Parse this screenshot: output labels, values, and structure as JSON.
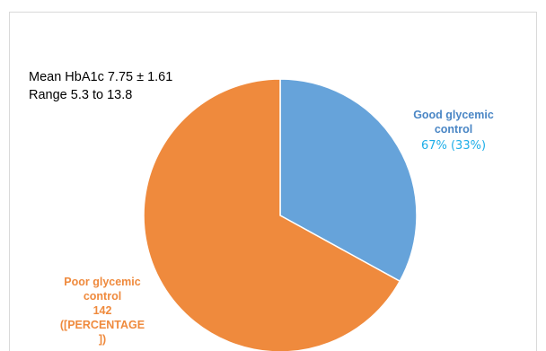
{
  "chart_data": {
    "type": "pie",
    "slices": [
      {
        "label": "Good glycemic control",
        "value_text": "67% (33%)",
        "percent": 33,
        "color": "#66a3da"
      },
      {
        "label": "Poor glycemic control",
        "value_text": "142",
        "percent_text": "([PERCENTAGE ])",
        "percent": 67,
        "color": "#ef8a3d"
      }
    ],
    "annotations": [
      "Mean HbA1c 7.75 ± 1.61",
      "Range 5.3 to 13.8"
    ]
  },
  "labels": {
    "good_line1": "Good glycemic",
    "good_line2": "control",
    "good_value": "67% (33%)",
    "poor_line1": "Poor glycemic",
    "poor_line2": "control",
    "poor_value": "142",
    "poor_pct1": "([PERCENTAGE",
    "poor_pct2": "])"
  },
  "colors": {
    "good_text": "#4a86c5",
    "good_value_text": "#1eaee8",
    "poor_text": "#ef8a3d"
  }
}
